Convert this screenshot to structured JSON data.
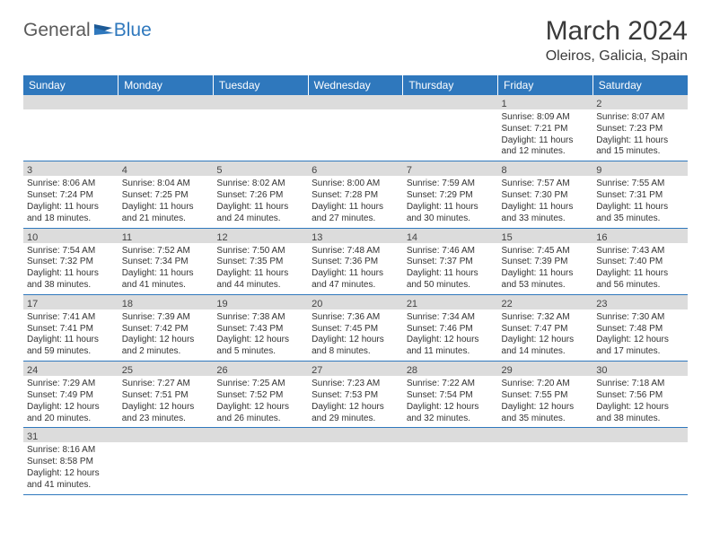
{
  "logo": {
    "word1": "General",
    "word2": "Blue",
    "flag_color": "#2f78bd",
    "text1_color": "#5a5a5a"
  },
  "title": "March 2024",
  "location": "Oleiros, Galicia, Spain",
  "styling": {
    "header_bg": "#2f78bd",
    "header_text": "#ffffff",
    "daynum_bg": "#dcdcdc",
    "border_color": "#2f78bd",
    "body_text": "#333333",
    "title_fontsize": 30,
    "location_fontsize": 16,
    "th_fontsize": 12,
    "cell_fontsize": 10
  },
  "day_headers": [
    "Sunday",
    "Monday",
    "Tuesday",
    "Wednesday",
    "Thursday",
    "Friday",
    "Saturday"
  ],
  "weeks": [
    [
      null,
      null,
      null,
      null,
      null,
      {
        "n": "1",
        "sr": "Sunrise: 8:09 AM",
        "ss": "Sunset: 7:21 PM",
        "d1": "Daylight: 11 hours",
        "d2": "and 12 minutes."
      },
      {
        "n": "2",
        "sr": "Sunrise: 8:07 AM",
        "ss": "Sunset: 7:23 PM",
        "d1": "Daylight: 11 hours",
        "d2": "and 15 minutes."
      }
    ],
    [
      {
        "n": "3",
        "sr": "Sunrise: 8:06 AM",
        "ss": "Sunset: 7:24 PM",
        "d1": "Daylight: 11 hours",
        "d2": "and 18 minutes."
      },
      {
        "n": "4",
        "sr": "Sunrise: 8:04 AM",
        "ss": "Sunset: 7:25 PM",
        "d1": "Daylight: 11 hours",
        "d2": "and 21 minutes."
      },
      {
        "n": "5",
        "sr": "Sunrise: 8:02 AM",
        "ss": "Sunset: 7:26 PM",
        "d1": "Daylight: 11 hours",
        "d2": "and 24 minutes."
      },
      {
        "n": "6",
        "sr": "Sunrise: 8:00 AM",
        "ss": "Sunset: 7:28 PM",
        "d1": "Daylight: 11 hours",
        "d2": "and 27 minutes."
      },
      {
        "n": "7",
        "sr": "Sunrise: 7:59 AM",
        "ss": "Sunset: 7:29 PM",
        "d1": "Daylight: 11 hours",
        "d2": "and 30 minutes."
      },
      {
        "n": "8",
        "sr": "Sunrise: 7:57 AM",
        "ss": "Sunset: 7:30 PM",
        "d1": "Daylight: 11 hours",
        "d2": "and 33 minutes."
      },
      {
        "n": "9",
        "sr": "Sunrise: 7:55 AM",
        "ss": "Sunset: 7:31 PM",
        "d1": "Daylight: 11 hours",
        "d2": "and 35 minutes."
      }
    ],
    [
      {
        "n": "10",
        "sr": "Sunrise: 7:54 AM",
        "ss": "Sunset: 7:32 PM",
        "d1": "Daylight: 11 hours",
        "d2": "and 38 minutes."
      },
      {
        "n": "11",
        "sr": "Sunrise: 7:52 AM",
        "ss": "Sunset: 7:34 PM",
        "d1": "Daylight: 11 hours",
        "d2": "and 41 minutes."
      },
      {
        "n": "12",
        "sr": "Sunrise: 7:50 AM",
        "ss": "Sunset: 7:35 PM",
        "d1": "Daylight: 11 hours",
        "d2": "and 44 minutes."
      },
      {
        "n": "13",
        "sr": "Sunrise: 7:48 AM",
        "ss": "Sunset: 7:36 PM",
        "d1": "Daylight: 11 hours",
        "d2": "and 47 minutes."
      },
      {
        "n": "14",
        "sr": "Sunrise: 7:46 AM",
        "ss": "Sunset: 7:37 PM",
        "d1": "Daylight: 11 hours",
        "d2": "and 50 minutes."
      },
      {
        "n": "15",
        "sr": "Sunrise: 7:45 AM",
        "ss": "Sunset: 7:39 PM",
        "d1": "Daylight: 11 hours",
        "d2": "and 53 minutes."
      },
      {
        "n": "16",
        "sr": "Sunrise: 7:43 AM",
        "ss": "Sunset: 7:40 PM",
        "d1": "Daylight: 11 hours",
        "d2": "and 56 minutes."
      }
    ],
    [
      {
        "n": "17",
        "sr": "Sunrise: 7:41 AM",
        "ss": "Sunset: 7:41 PM",
        "d1": "Daylight: 11 hours",
        "d2": "and 59 minutes."
      },
      {
        "n": "18",
        "sr": "Sunrise: 7:39 AM",
        "ss": "Sunset: 7:42 PM",
        "d1": "Daylight: 12 hours",
        "d2": "and 2 minutes."
      },
      {
        "n": "19",
        "sr": "Sunrise: 7:38 AM",
        "ss": "Sunset: 7:43 PM",
        "d1": "Daylight: 12 hours",
        "d2": "and 5 minutes."
      },
      {
        "n": "20",
        "sr": "Sunrise: 7:36 AM",
        "ss": "Sunset: 7:45 PM",
        "d1": "Daylight: 12 hours",
        "d2": "and 8 minutes."
      },
      {
        "n": "21",
        "sr": "Sunrise: 7:34 AM",
        "ss": "Sunset: 7:46 PM",
        "d1": "Daylight: 12 hours",
        "d2": "and 11 minutes."
      },
      {
        "n": "22",
        "sr": "Sunrise: 7:32 AM",
        "ss": "Sunset: 7:47 PM",
        "d1": "Daylight: 12 hours",
        "d2": "and 14 minutes."
      },
      {
        "n": "23",
        "sr": "Sunrise: 7:30 AM",
        "ss": "Sunset: 7:48 PM",
        "d1": "Daylight: 12 hours",
        "d2": "and 17 minutes."
      }
    ],
    [
      {
        "n": "24",
        "sr": "Sunrise: 7:29 AM",
        "ss": "Sunset: 7:49 PM",
        "d1": "Daylight: 12 hours",
        "d2": "and 20 minutes."
      },
      {
        "n": "25",
        "sr": "Sunrise: 7:27 AM",
        "ss": "Sunset: 7:51 PM",
        "d1": "Daylight: 12 hours",
        "d2": "and 23 minutes."
      },
      {
        "n": "26",
        "sr": "Sunrise: 7:25 AM",
        "ss": "Sunset: 7:52 PM",
        "d1": "Daylight: 12 hours",
        "d2": "and 26 minutes."
      },
      {
        "n": "27",
        "sr": "Sunrise: 7:23 AM",
        "ss": "Sunset: 7:53 PM",
        "d1": "Daylight: 12 hours",
        "d2": "and 29 minutes."
      },
      {
        "n": "28",
        "sr": "Sunrise: 7:22 AM",
        "ss": "Sunset: 7:54 PM",
        "d1": "Daylight: 12 hours",
        "d2": "and 32 minutes."
      },
      {
        "n": "29",
        "sr": "Sunrise: 7:20 AM",
        "ss": "Sunset: 7:55 PM",
        "d1": "Daylight: 12 hours",
        "d2": "and 35 minutes."
      },
      {
        "n": "30",
        "sr": "Sunrise: 7:18 AM",
        "ss": "Sunset: 7:56 PM",
        "d1": "Daylight: 12 hours",
        "d2": "and 38 minutes."
      }
    ],
    [
      {
        "n": "31",
        "sr": "Sunrise: 8:16 AM",
        "ss": "Sunset: 8:58 PM",
        "d1": "Daylight: 12 hours",
        "d2": "and 41 minutes."
      },
      null,
      null,
      null,
      null,
      null,
      null
    ]
  ]
}
